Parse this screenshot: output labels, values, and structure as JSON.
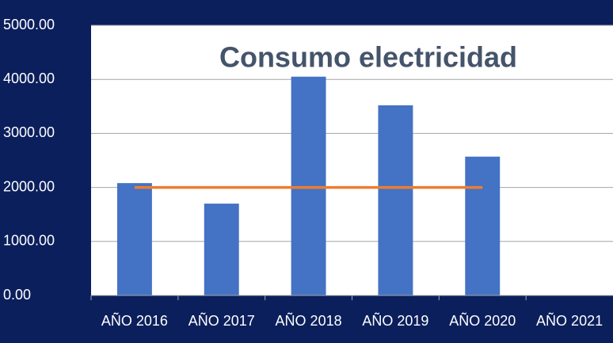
{
  "chart_data": {
    "type": "bar",
    "title": "Consumo electricidad",
    "categories": [
      "AÑO 2016",
      "AÑO 2017",
      "AÑO 2018",
      "AÑO 2019",
      "AÑO 2020",
      "AÑO 2021"
    ],
    "series": [
      {
        "type": "bar",
        "color": "#4472c4",
        "values": [
          2080,
          1700,
          4050,
          3520,
          2570,
          null
        ]
      },
      {
        "type": "line",
        "color": "#ed7d31",
        "values": [
          2000,
          2000,
          2000,
          2000,
          2000,
          null
        ]
      }
    ],
    "ylim": [
      0,
      5000
    ],
    "yticks": [
      {
        "value": 0,
        "label": "0.00"
      },
      {
        "value": 1000,
        "label": "1000.00"
      },
      {
        "value": 2000,
        "label": "2000.00"
      },
      {
        "value": 3000,
        "label": "3000.00"
      },
      {
        "value": 4000,
        "label": "4000.00"
      },
      {
        "value": 5000,
        "label": "5000.00"
      }
    ],
    "grid": true
  }
}
